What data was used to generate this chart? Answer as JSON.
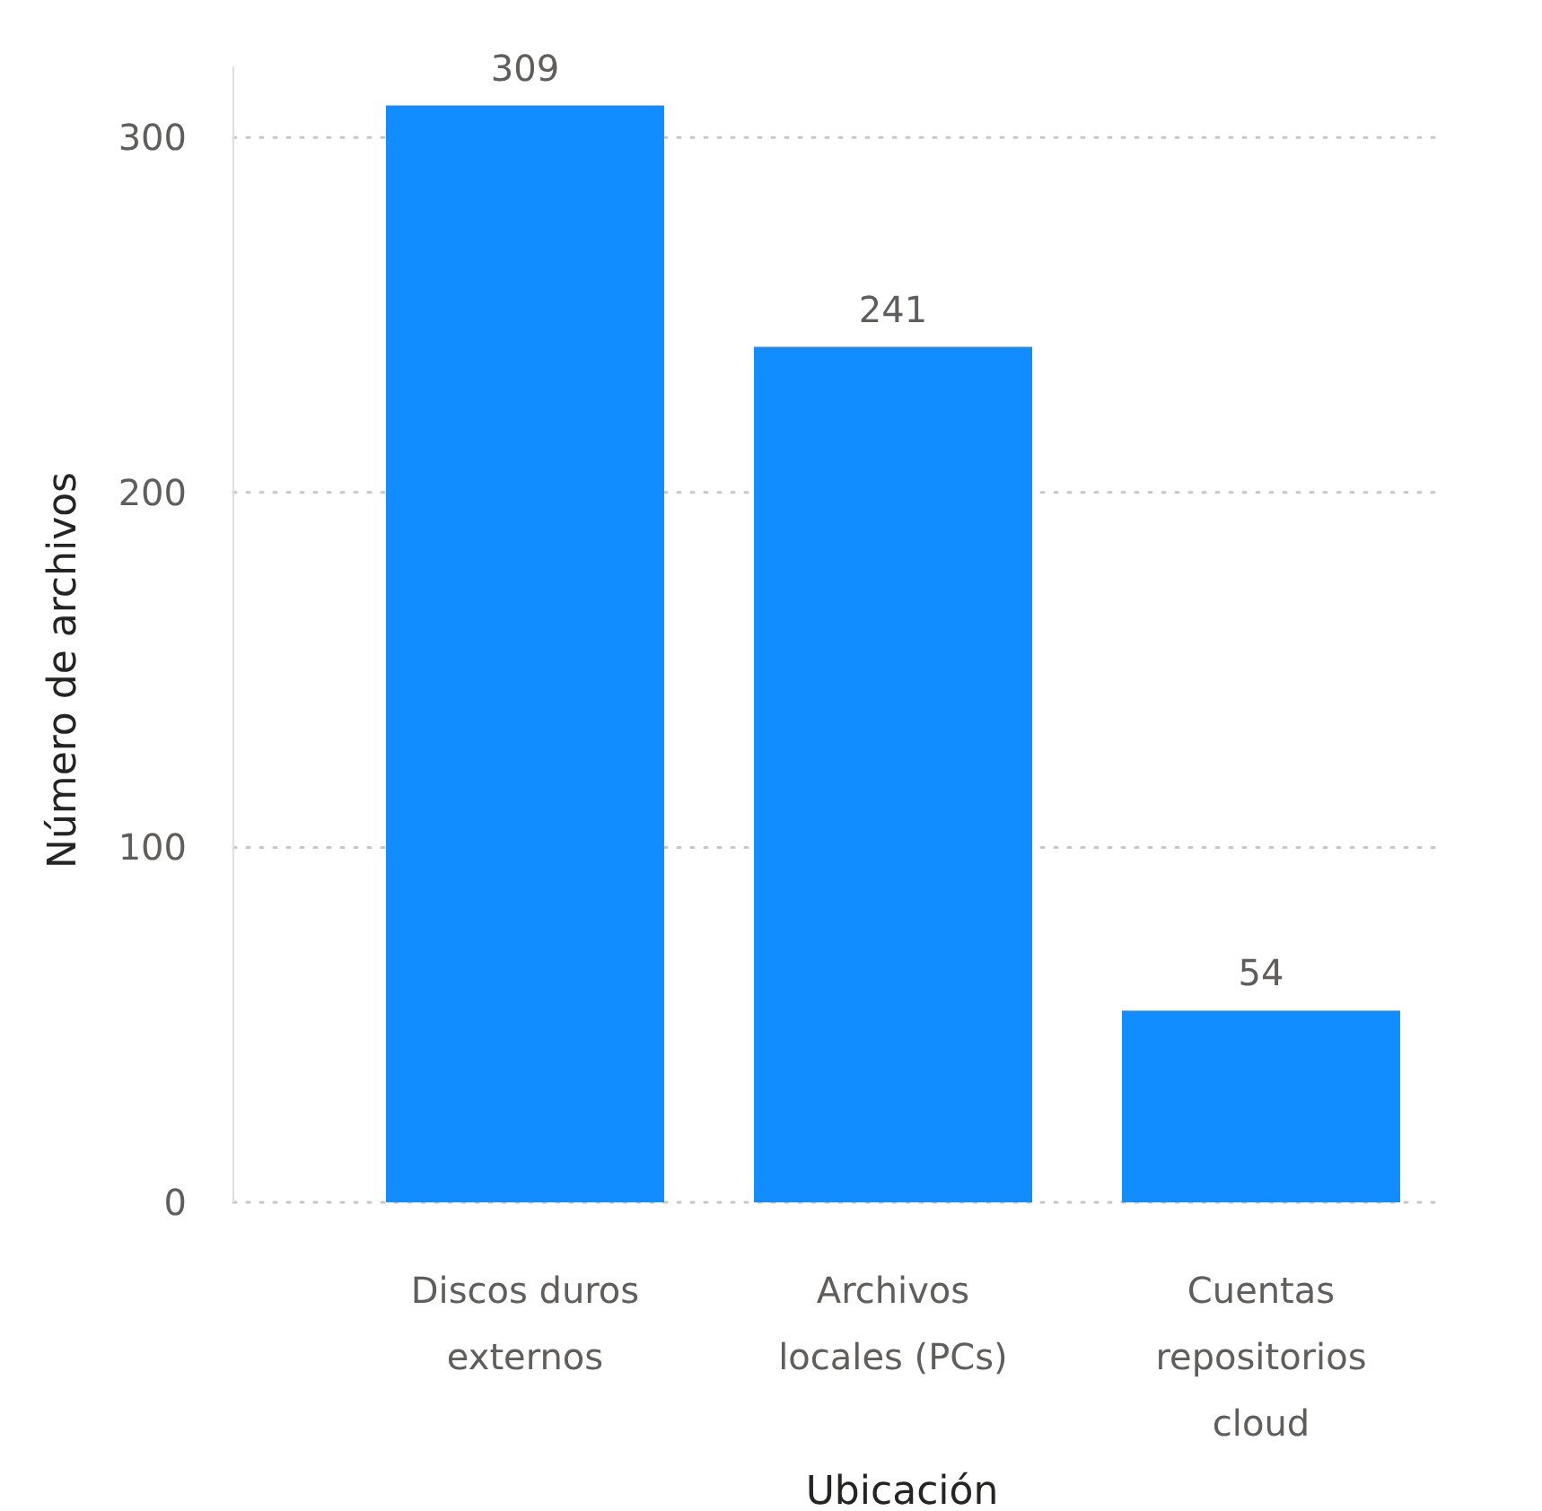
{
  "chart_data": {
    "type": "bar",
    "xlabel": "Ubicación",
    "ylabel": "Número de archivos",
    "categories": [
      "Discos duros externos",
      "Archivos locales (PCs)",
      "Cuentas repositorios cloud"
    ],
    "values": [
      309,
      241,
      54
    ],
    "color": "#118dff",
    "ylim": [
      0,
      320
    ],
    "yticks": [
      0,
      100,
      200,
      300
    ],
    "grid": "y",
    "data_labels": true
  }
}
